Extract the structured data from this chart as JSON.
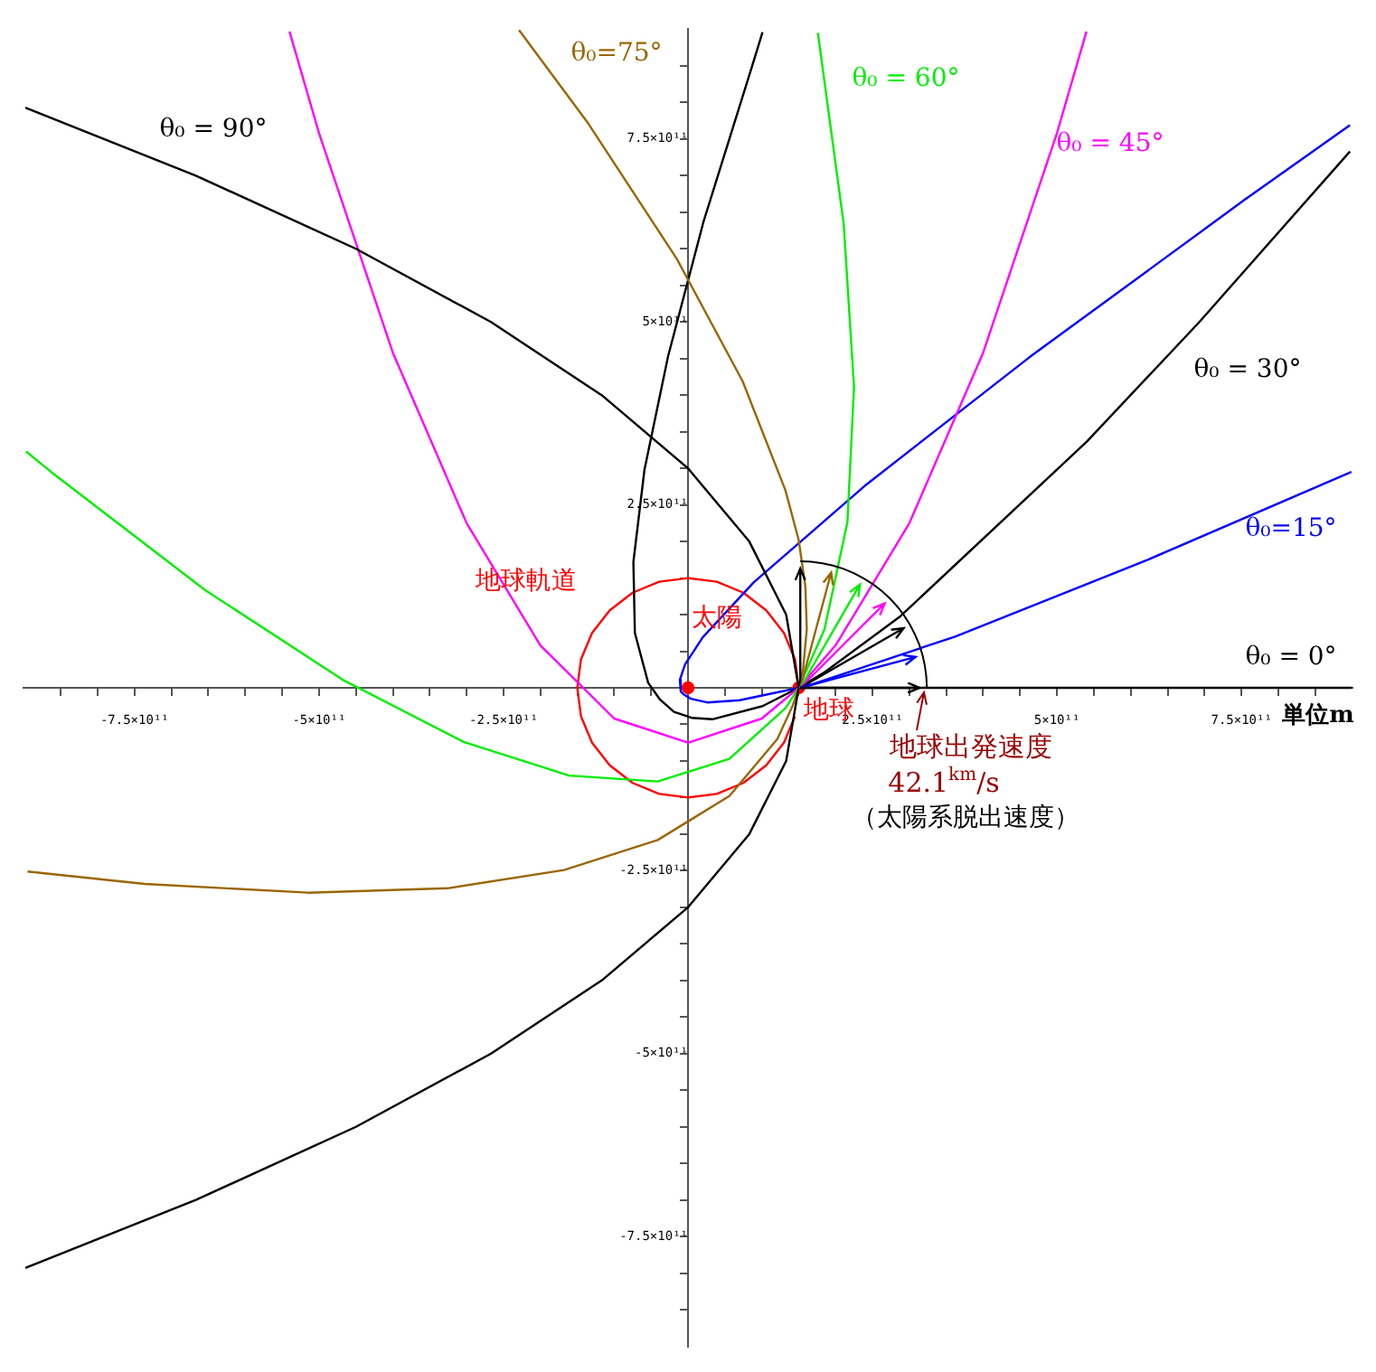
{
  "chart_data": {
    "type": "line",
    "marker": "none",
    "annotations": [
      "地球軌道",
      {
        "text": "太陽",
        "x": 0,
        "y": 0
      },
      {
        "text": "地球",
        "x": 150000000000.0,
        "y": 0
      },
      "地球出発速度",
      "42.1$^{km}$/s",
      "（太陽系脱出速度）",
      "単位m"
    ],
    "xlim": [
      -900000000000.0,
      900000000000.0
    ],
    "ylim": [
      -900000000000.0,
      900000000000.0
    ],
    "xticks": [
      {
        "value": -850000000000.0,
        "label": null
      },
      {
        "value": -800000000000.0,
        "label": null
      },
      {
        "value": -750000000000.0,
        "label": "-7.5×10¹¹"
      },
      {
        "value": -700000000000.0,
        "label": null
      },
      {
        "value": -650000000000.0,
        "label": null
      },
      {
        "value": -600000000000.0,
        "label": null
      },
      {
        "value": -550000000000.0,
        "label": null
      },
      {
        "value": -500000000000.0,
        "label": "-5×10¹¹"
      },
      {
        "value": -450000000000.0,
        "label": null
      },
      {
        "value": -400000000000.0,
        "label": null
      },
      {
        "value": -350000000000.0,
        "label": null
      },
      {
        "value": -300000000000.0,
        "label": null
      },
      {
        "value": -250000000000.0,
        "label": "-2.5×10¹¹"
      },
      {
        "value": -200000000000.0,
        "label": null
      },
      {
        "value": -150000000000.0,
        "label": null
      },
      {
        "value": -100000000000.0,
        "label": null
      },
      {
        "value": -50000000000.0,
        "label": null
      },
      {
        "value": 50000000000.0,
        "label": null
      },
      {
        "value": 100000000000.0,
        "label": null
      },
      {
        "value": 150000000000.0,
        "label": null
      },
      {
        "value": 200000000000.0,
        "label": null
      },
      {
        "value": 250000000000.0,
        "label": "2.5×10¹¹"
      },
      {
        "value": 300000000000.0,
        "label": null
      },
      {
        "value": 350000000000.0,
        "label": null
      },
      {
        "value": 400000000000.0,
        "label": null
      },
      {
        "value": 450000000000.0,
        "label": null
      },
      {
        "value": 500000000000.0,
        "label": "5×10¹¹"
      },
      {
        "value": 550000000000.0,
        "label": null
      },
      {
        "value": 600000000000.0,
        "label": null
      },
      {
        "value": 650000000000.0,
        "label": null
      },
      {
        "value": 700000000000.0,
        "label": null
      },
      {
        "value": 750000000000.0,
        "label": "7.5×10¹¹"
      },
      {
        "value": 800000000000.0,
        "label": null
      },
      {
        "value": 850000000000.0,
        "label": null
      }
    ],
    "yticks": [
      {
        "value": -850000000000.0,
        "label": null
      },
      {
        "value": -800000000000.0,
        "label": null
      },
      {
        "value": -750000000000.0,
        "label": "-7.5×10¹¹"
      },
      {
        "value": -700000000000.0,
        "label": null
      },
      {
        "value": -650000000000.0,
        "label": null
      },
      {
        "value": -600000000000.0,
        "label": null
      },
      {
        "value": -550000000000.0,
        "label": null
      },
      {
        "value": -500000000000.0,
        "label": "-5×10¹¹"
      },
      {
        "value": -450000000000.0,
        "label": null
      },
      {
        "value": -400000000000.0,
        "label": null
      },
      {
        "value": -350000000000.0,
        "label": null
      },
      {
        "value": -300000000000.0,
        "label": null
      },
      {
        "value": -250000000000.0,
        "label": "-2.5×10¹¹"
      },
      {
        "value": -200000000000.0,
        "label": null
      },
      {
        "value": -150000000000.0,
        "label": null
      },
      {
        "value": -100000000000.0,
        "label": null
      },
      {
        "value": -50000000000.0,
        "label": null
      },
      {
        "value": 50000000000.0,
        "label": null
      },
      {
        "value": 100000000000.0,
        "label": null
      },
      {
        "value": 150000000000.0,
        "label": null
      },
      {
        "value": 200000000000.0,
        "label": null
      },
      {
        "value": 250000000000.0,
        "label": "2.5×10¹¹"
      },
      {
        "value": 300000000000.0,
        "label": null
      },
      {
        "value": 350000000000.0,
        "label": null
      },
      {
        "value": 400000000000.0,
        "label": null
      },
      {
        "value": 450000000000.0,
        "label": null
      },
      {
        "value": 500000000000.0,
        "label": "5×10¹¹"
      },
      {
        "value": 550000000000.0,
        "label": null
      },
      {
        "value": 600000000000.0,
        "label": null
      },
      {
        "value": 650000000000.0,
        "label": null
      },
      {
        "value": 700000000000.0,
        "label": null
      },
      {
        "value": 750000000000.0,
        "label": "7.5×10¹¹"
      },
      {
        "value": 800000000000.0,
        "label": null
      },
      {
        "value": 850000000000.0,
        "label": null
      }
    ],
    "series": [
      {
        "name": "θ₀ = 90°",
        "color": "#000000",
        "x": [
          -898000000000.0,
          -667000000000.0,
          -450000000000.0,
          -267000000000.0,
          -117000000000.0,
          0,
          83000000000.0,
          133000000000.0,
          150000000000.0,
          133000000000.0,
          83000000000.0,
          0,
          -117000000000.0,
          -267000000000.0,
          -450000000000.0,
          -667000000000.0,
          -898000000000.0
        ],
        "values": [
          -793000000000.0,
          -700000000000.0,
          -600000000000.0,
          -500000000000.0,
          -400000000000.0,
          -300000000000.0,
          -200000000000.0,
          -100000000000.0,
          0,
          100000000000.0,
          200000000000.0,
          300000000000.0,
          400000000000.0,
          500000000000.0,
          600000000000.0,
          700000000000.0,
          793000000000.0
        ]
      },
      {
        "name": "θ₀=75°",
        "color": "#996600",
        "x": [
          -895000000000.0,
          -736000000000.0,
          -515000000000.0,
          -326000000000.0,
          -168000000000.0,
          -41000000000.0,
          56000000000.0,
          121000000000.0,
          142000000000.0,
          150000000000.0,
          156000000000.0,
          161000000000.0,
          159000000000.0,
          150000000000.0,
          132000000000.0,
          74000000000.0,
          -15000000000.0,
          -135000000000.0,
          -229000000000.0
        ],
        "values": [
          -251000000000.0,
          -268000000000.0,
          -280000000000.0,
          -274000000000.0,
          -249000000000.0,
          -208000000000.0,
          -148000000000.0,
          -70000000000.0,
          -24000000000.0,
          0,
          26000000000.0,
          80000000000.0,
          139000000000.0,
          202000000000.0,
          270000000000.0,
          419000000000.0,
          586000000000.0,
          771000000000.0,
          899000000000.0
        ]
      },
      {
        "name": "θ₀ = 60°",
        "color": "#00ee00",
        "x": [
          -897000000000.0,
          -863000000000.0,
          -655000000000.0,
          -468000000000.0,
          -304000000000.0,
          -161000000000.0,
          -41000000000.0,
          56000000000.0,
          132000000000.0,
          150000000000.0,
          185000000000.0,
          216000000000.0,
          225000000000.0,
          211000000000.0,
          176000000000.0
        ],
        "values": [
          323000000000.0,
          295000000000.0,
          134000000000.0,
          11000000000.0,
          -74000000000.0,
          -120000000000.0,
          -128000000000.0,
          -97000000000.0,
          -28000000000.0,
          0,
          80000000000.0,
          226000000000.0,
          411000000000.0,
          634000000000.0,
          895000000000.0
        ]
      },
      {
        "name": "θ₀ = 45°",
        "color": "#ff00ff",
        "x": [
          -540000000000.0,
          -500000000000.0,
          -400000000000.0,
          -300000000000.0,
          -200000000000.0,
          -100000000000.0,
          0,
          100000000000.0,
          150000000000.0,
          200000000000.0,
          300000000000.0,
          400000000000.0,
          500000000000.0,
          540000000000.0
        ],
        "values": [
          897000000000.0,
          758000000000.0,
          458000000000.0,
          225000000000.0,
          58000000000.0,
          -42000000000.0,
          -75000000000.0,
          -42000000000.0,
          0,
          58000000000.0,
          225000000000.0,
          458000000000.0,
          758000000000.0,
          897000000000.0
        ]
      },
      {
        "name": "θ₀ = 30°",
        "color": "#000000",
        "x": [
          101000000000.0,
          87000000000.0,
          21000000000.0,
          -27000000000.0,
          -59000000000.0,
          -74000000000.0,
          -72000000000.0,
          -54000000000.0,
          -38000000000.0,
          -19000000000.0,
          5000000000.0,
          33000000000.0,
          101000000000.0,
          150000000000.0,
          186000000000.0,
          288000000000.0,
          541000000000.0,
          693000000000.0,
          897000000000.0
        ],
        "values": [
          896000000000.0,
          850000000000.0,
          637000000000.0,
          453000000000.0,
          298000000000.0,
          172000000000.0,
          75000000000.0,
          7000000000.0,
          -16000000000.0,
          -33000000000.0,
          -41000000000.0,
          -43000000000.0,
          -25000000000.0,
          0,
          22000000000.0,
          98000000000.0,
          337000000000.0,
          500000000000.0,
          733000000000.0
        ]
      },
      {
        "name": "θ₀=15°",
        "color": "#0000ff",
        "x": [
          897000000000.0,
          753000000000.0,
          463000000000.0,
          242000000000.0,
          89000000000.0,
          20000000000.0,
          -4000000000.0,
          -11000000000.0,
          -11000000000.0,
          -8700000000.0,
          -6000000000.0,
          4000000000.0,
          26000000000.0,
          70000000000.0,
          150000000000.0,
          169000000000.0,
          362000000000.0,
          623000000000.0,
          899000000000.0
        ],
        "values": [
          769000000000.0,
          666000000000.0,
          452000000000.0,
          278000000000.0,
          144000000000.0,
          69000000000.0,
          32000000000.0,
          11000000000.0,
          0,
          -5000000000.0,
          -9000000000.0,
          -15000000000.0,
          -20000000000.0,
          -17000000000.0,
          0,
          5000000000.0,
          70000000000.0,
          175000000000.0,
          295000000000.0
        ]
      },
      {
        "name": "θ₀ = 0°",
        "color": "#000000",
        "x": [
          150000000000.0,
          900000000000.0
        ],
        "values": [
          0,
          0
        ]
      },
      {
        "color": "#ff0000",
        "x": [
          150000000000.0,
          145000000000.0,
          130000000000.0,
          106000000000.0,
          75000000000.0,
          39000000000.0,
          0,
          -39000000000.0,
          -75000000000.0,
          -106000000000.0,
          -130000000000.0,
          -145000000000.0,
          -150000000000.0,
          -145000000000.0,
          -130000000000.0,
          -106000000000.0,
          -75000000000.0,
          -39000000000.0,
          0,
          39000000000.0,
          75000000000.0,
          106000000000.0,
          130000000000.0,
          145000000000.0
        ],
        "values": [
          0,
          39000000000.0,
          75000000000.0,
          106000000000.0,
          130000000000.0,
          145000000000.0,
          150000000000.0,
          145000000000.0,
          130000000000.0,
          106000000000.0,
          75000000000.0,
          39000000000.0,
          0,
          -39000000000.0,
          -75000000000.0,
          -106000000000.0,
          -130000000000.0,
          -145000000000.0,
          -150000000000.0,
          -145000000000.0,
          -130000000000.0,
          -106000000000.0,
          -75000000000.0,
          -39000000000.0
        ]
      },
      {
        "type": "scatter",
        "marker": "circle",
        "color": "#ff0000",
        "x": [
          0,
          150000000000.0
        ],
        "values": [
          0,
          0
        ]
      }
    ]
  }
}
